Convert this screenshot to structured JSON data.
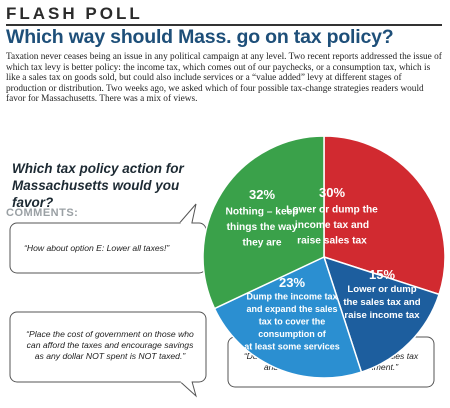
{
  "header": {
    "kicker": "FLASH POLL",
    "headline": "Which way should Mass. go on tax policy?",
    "intro": "Taxation never ceases being an issue in any political campaign at any level. Two recent reports addressed the issue of which tax levy is better policy: the income tax, which comes out of our paychecks, or a consumption tax, which is like a sales tax on goods sold, but could also include services or a “value added” levy at different stages of production or distribution. Two weeks ago, we asked which of four possible tax-change strategies readers would favor for Massachusetts. There was a mix of views."
  },
  "question": "Which tax policy action for Massachusetts would you favor?",
  "comments": {
    "label": "COMMENTS:",
    "items": [
      "“How about option E: Lower all taxes!”",
      "“Place the cost of government on those who can afford the taxes and encourage savings as any dollar NOT spent is NOT taxed.”",
      "“Dump the income tax and lower the sales tax and stop the waste in government.”"
    ]
  },
  "chart_data": {
    "type": "pie",
    "title": "Which tax policy action for Massachusetts would you favor?",
    "slices": [
      {
        "label": "Lower or dump the income tax and raise sales tax",
        "value": 30,
        "percent_label": "30%",
        "color": "#d12a30"
      },
      {
        "label": "Lower or dump the sales tax and raise income tax",
        "value": 15,
        "percent_label": "15%",
        "color": "#1d5e9e"
      },
      {
        "label": "Dump the income tax and expand the sales tax to cover the consumption of at least some services",
        "value": 23,
        "percent_label": "23%",
        "color": "#2b8fd1"
      },
      {
        "label": "Nothing – keep things the way they are",
        "value": 32,
        "percent_label": "32%",
        "color": "#3aa14a"
      }
    ]
  }
}
